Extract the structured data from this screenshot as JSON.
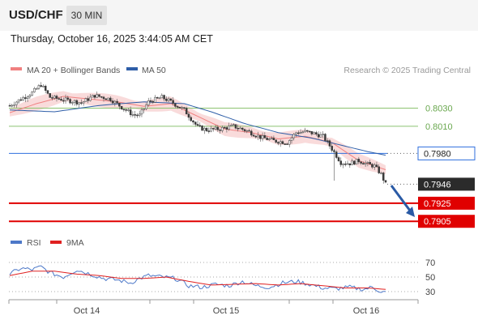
{
  "header": {
    "symbol": "USD/CHF",
    "timeframe": "30 MIN"
  },
  "datetime": "Thursday, October 16, 2025 3:44:05 AM CET",
  "legend": {
    "ma20": "MA 20 + Bollinger Bands",
    "ma50": "MA 50",
    "credit": "Research © 2025 Trading Central"
  },
  "rsi_legend": {
    "rsi": "RSI",
    "ma": "9MA"
  },
  "colors": {
    "ma20": "#f08080",
    "ma50": "#2e5ea8",
    "bands": "#f6c8c8",
    "support": "#e00000",
    "resistance": "#8cc370",
    "pivot": "#2f6fde",
    "arrow": "#2a5aa5",
    "rsi": "#4d78c8",
    "rsi_ma": "#e02020"
  },
  "chart_data": [
    {
      "type": "candlestick",
      "x_labels": [
        "Oct 14",
        "Oct 15",
        "Oct 16"
      ],
      "ylim": [
        0.789,
        0.806
      ],
      "levels": [
        {
          "value": 0.803,
          "label": "0.8030",
          "kind": "resistance"
        },
        {
          "value": 0.801,
          "label": "0.8010",
          "kind": "resistance"
        },
        {
          "value": 0.798,
          "label": "0.7980",
          "kind": "pivot"
        },
        {
          "value": 0.7946,
          "label": "0.7946",
          "kind": "last"
        },
        {
          "value": 0.7925,
          "label": "0.7925",
          "kind": "support"
        },
        {
          "value": 0.7905,
          "label": "0.7905",
          "kind": "support"
        }
      ],
      "price_anchors": [
        [
          0,
          0.8033
        ],
        [
          5,
          0.804
        ],
        [
          10,
          0.8047
        ],
        [
          14,
          0.8056
        ],
        [
          18,
          0.8042
        ],
        [
          25,
          0.8039
        ],
        [
          32,
          0.8036
        ],
        [
          38,
          0.8044
        ],
        [
          45,
          0.804
        ],
        [
          50,
          0.8031
        ],
        [
          55,
          0.8023
        ],
        [
          58,
          0.8022
        ],
        [
          62,
          0.8037
        ],
        [
          68,
          0.8042
        ],
        [
          72,
          0.8037
        ],
        [
          78,
          0.8028
        ],
        [
          84,
          0.8009
        ],
        [
          88,
          0.8006
        ],
        [
          94,
          0.8007
        ],
        [
          100,
          0.801
        ],
        [
          106,
          0.8005
        ],
        [
          112,
          0.7998
        ],
        [
          118,
          0.7994
        ],
        [
          124,
          0.7992
        ],
        [
          128,
          0.8003
        ],
        [
          132,
          0.8004
        ],
        [
          136,
          0.8002
        ],
        [
          140,
          0.7999
        ],
        [
          144,
          0.7985
        ],
        [
          148,
          0.797
        ],
        [
          152,
          0.7969
        ],
        [
          156,
          0.7972
        ],
        [
          160,
          0.7968
        ],
        [
          163,
          0.7966
        ],
        [
          166,
          0.7957
        ],
        [
          168,
          0.7946
        ]
      ],
      "ma20_anchors": [
        [
          0,
          0.8025
        ],
        [
          12,
          0.8035
        ],
        [
          24,
          0.8043
        ],
        [
          36,
          0.804
        ],
        [
          48,
          0.8037
        ],
        [
          60,
          0.8032
        ],
        [
          72,
          0.8035
        ],
        [
          84,
          0.8021
        ],
        [
          96,
          0.8007
        ],
        [
          108,
          0.8003
        ],
        [
          120,
          0.7996
        ],
        [
          132,
          0.7999
        ],
        [
          144,
          0.7992
        ],
        [
          156,
          0.7972
        ],
        [
          168,
          0.7962
        ]
      ],
      "ma50_anchors": [
        [
          0,
          0.8028
        ],
        [
          20,
          0.8026
        ],
        [
          40,
          0.8033
        ],
        [
          60,
          0.8037
        ],
        [
          78,
          0.8035
        ],
        [
          90,
          0.8026
        ],
        [
          105,
          0.8013
        ],
        [
          120,
          0.8003
        ],
        [
          135,
          0.7997
        ],
        [
          150,
          0.7988
        ],
        [
          160,
          0.7982
        ],
        [
          168,
          0.7978
        ]
      ],
      "band_width": 0.0006
    },
    {
      "type": "line",
      "name": "RSI",
      "ylim": [
        20,
        80
      ],
      "ticks": [
        70,
        50,
        30
      ],
      "rsi_anchors": [
        [
          0,
          54
        ],
        [
          5,
          62
        ],
        [
          10,
          60
        ],
        [
          14,
          64
        ],
        [
          18,
          56
        ],
        [
          24,
          50
        ],
        [
          30,
          60
        ],
        [
          36,
          54
        ],
        [
          42,
          48
        ],
        [
          48,
          46
        ],
        [
          54,
          42
        ],
        [
          58,
          48
        ],
        [
          62,
          52
        ],
        [
          68,
          50
        ],
        [
          74,
          48
        ],
        [
          80,
          38
        ],
        [
          86,
          36
        ],
        [
          92,
          40
        ],
        [
          98,
          38
        ],
        [
          104,
          44
        ],
        [
          110,
          38
        ],
        [
          116,
          36
        ],
        [
          122,
          42
        ],
        [
          128,
          44
        ],
        [
          134,
          40
        ],
        [
          140,
          35
        ],
        [
          146,
          34
        ],
        [
          152,
          36
        ],
        [
          158,
          33
        ],
        [
          162,
          36
        ],
        [
          166,
          30
        ],
        [
          168,
          29
        ]
      ],
      "ma_anchors": [
        [
          0,
          52
        ],
        [
          10,
          58
        ],
        [
          20,
          58
        ],
        [
          30,
          54
        ],
        [
          40,
          52
        ],
        [
          50,
          48
        ],
        [
          60,
          48
        ],
        [
          70,
          50
        ],
        [
          80,
          44
        ],
        [
          90,
          39
        ],
        [
          100,
          40
        ],
        [
          110,
          41
        ],
        [
          120,
          39
        ],
        [
          130,
          41
        ],
        [
          140,
          38
        ],
        [
          150,
          35
        ],
        [
          160,
          35
        ],
        [
          168,
          33
        ]
      ]
    }
  ]
}
